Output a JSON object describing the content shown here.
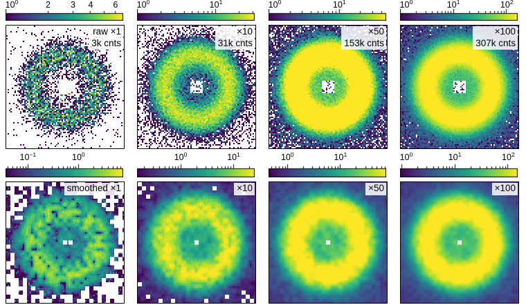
{
  "figure": {
    "background": "#ffffff",
    "colormap": "viridis",
    "color_low": "#440154",
    "color_high": "#fde725",
    "masked_color": "#ffffff"
  },
  "chart_data": {
    "type": "heatmap",
    "layout": {
      "rows": 2,
      "cols": 4,
      "colorbar_position": "top",
      "colorbar_scale": "log",
      "grid": "off",
      "axes_ticks": "none"
    },
    "description": "2x4 grid of detector diffraction ring images (viridis colormap). Top row: raw Poisson count images at increasing dose (zero counts shown white). Bottom row: smoothed versions of the same images. Each panel has its own horizontal log-scaled colorbar above it.",
    "panels": [
      {
        "row": 0,
        "col": 0,
        "label_lines": [
          "raw ×1",
          "3k cnts"
        ],
        "colorbar": {
          "vmin": 1,
          "vmax": 6.8,
          "labels": [
            {
              "v": 1,
              "t": "10^0"
            },
            {
              "v": 2,
              "t": "2"
            },
            {
              "v": 3,
              "t": "3"
            },
            {
              "v": 4,
              "t": "4"
            },
            {
              "v": 6,
              "t": "6"
            }
          ]
        }
      },
      {
        "row": 0,
        "col": 1,
        "label_lines": [
          "×10",
          "31k cnts"
        ],
        "colorbar": {
          "vmin": 1,
          "vmax": 31,
          "labels": [
            {
              "v": 1,
              "t": "10^0"
            },
            {
              "v": 10,
              "t": "10^1"
            }
          ]
        }
      },
      {
        "row": 0,
        "col": 2,
        "label_lines": [
          "×50",
          "153k cnts"
        ],
        "colorbar": {
          "vmin": 1,
          "vmax": 46,
          "labels": [
            {
              "v": 1,
              "t": "10^0"
            },
            {
              "v": 10,
              "t": "10^1"
            }
          ]
        }
      },
      {
        "row": 0,
        "col": 3,
        "label_lines": [
          "×100",
          "307k cnts"
        ],
        "colorbar": {
          "vmin": 1,
          "vmax": 160,
          "labels": [
            {
              "v": 1,
              "t": "10^0"
            },
            {
              "v": 10,
              "t": "10^1"
            },
            {
              "v": 100,
              "t": "10^2"
            }
          ]
        }
      },
      {
        "row": 1,
        "col": 0,
        "label_lines": [
          "smoothed ×1"
        ],
        "colorbar": {
          "vmin": 0.036,
          "vmax": 7.7,
          "labels": [
            {
              "v": 0.1,
              "t": "10^-1"
            },
            {
              "v": 1,
              "t": "10^0"
            }
          ]
        }
      },
      {
        "row": 1,
        "col": 1,
        "label_lines": [
          "×10"
        ],
        "colorbar": {
          "vmin": 0.15,
          "vmax": 25,
          "labels": [
            {
              "v": 1,
              "t": "10^0"
            },
            {
              "v": 10,
              "t": "10^1"
            }
          ]
        }
      },
      {
        "row": 1,
        "col": 2,
        "label_lines": [
          "×50"
        ],
        "colorbar": {
          "vmin": 0.44,
          "vmax": 73,
          "labels": [
            {
              "v": 1,
              "t": "10^0"
            },
            {
              "v": 10,
              "t": "10^1"
            }
          ]
        }
      },
      {
        "row": 1,
        "col": 3,
        "label_lines": [
          "×100"
        ],
        "colorbar": {
          "vmin": 0.95,
          "vmax": 150,
          "labels": [
            {
              "v": 1,
              "t": "10^0"
            },
            {
              "v": 10,
              "t": "10^1"
            },
            {
              "v": 100,
              "t": "10^2"
            }
          ]
        }
      }
    ]
  }
}
